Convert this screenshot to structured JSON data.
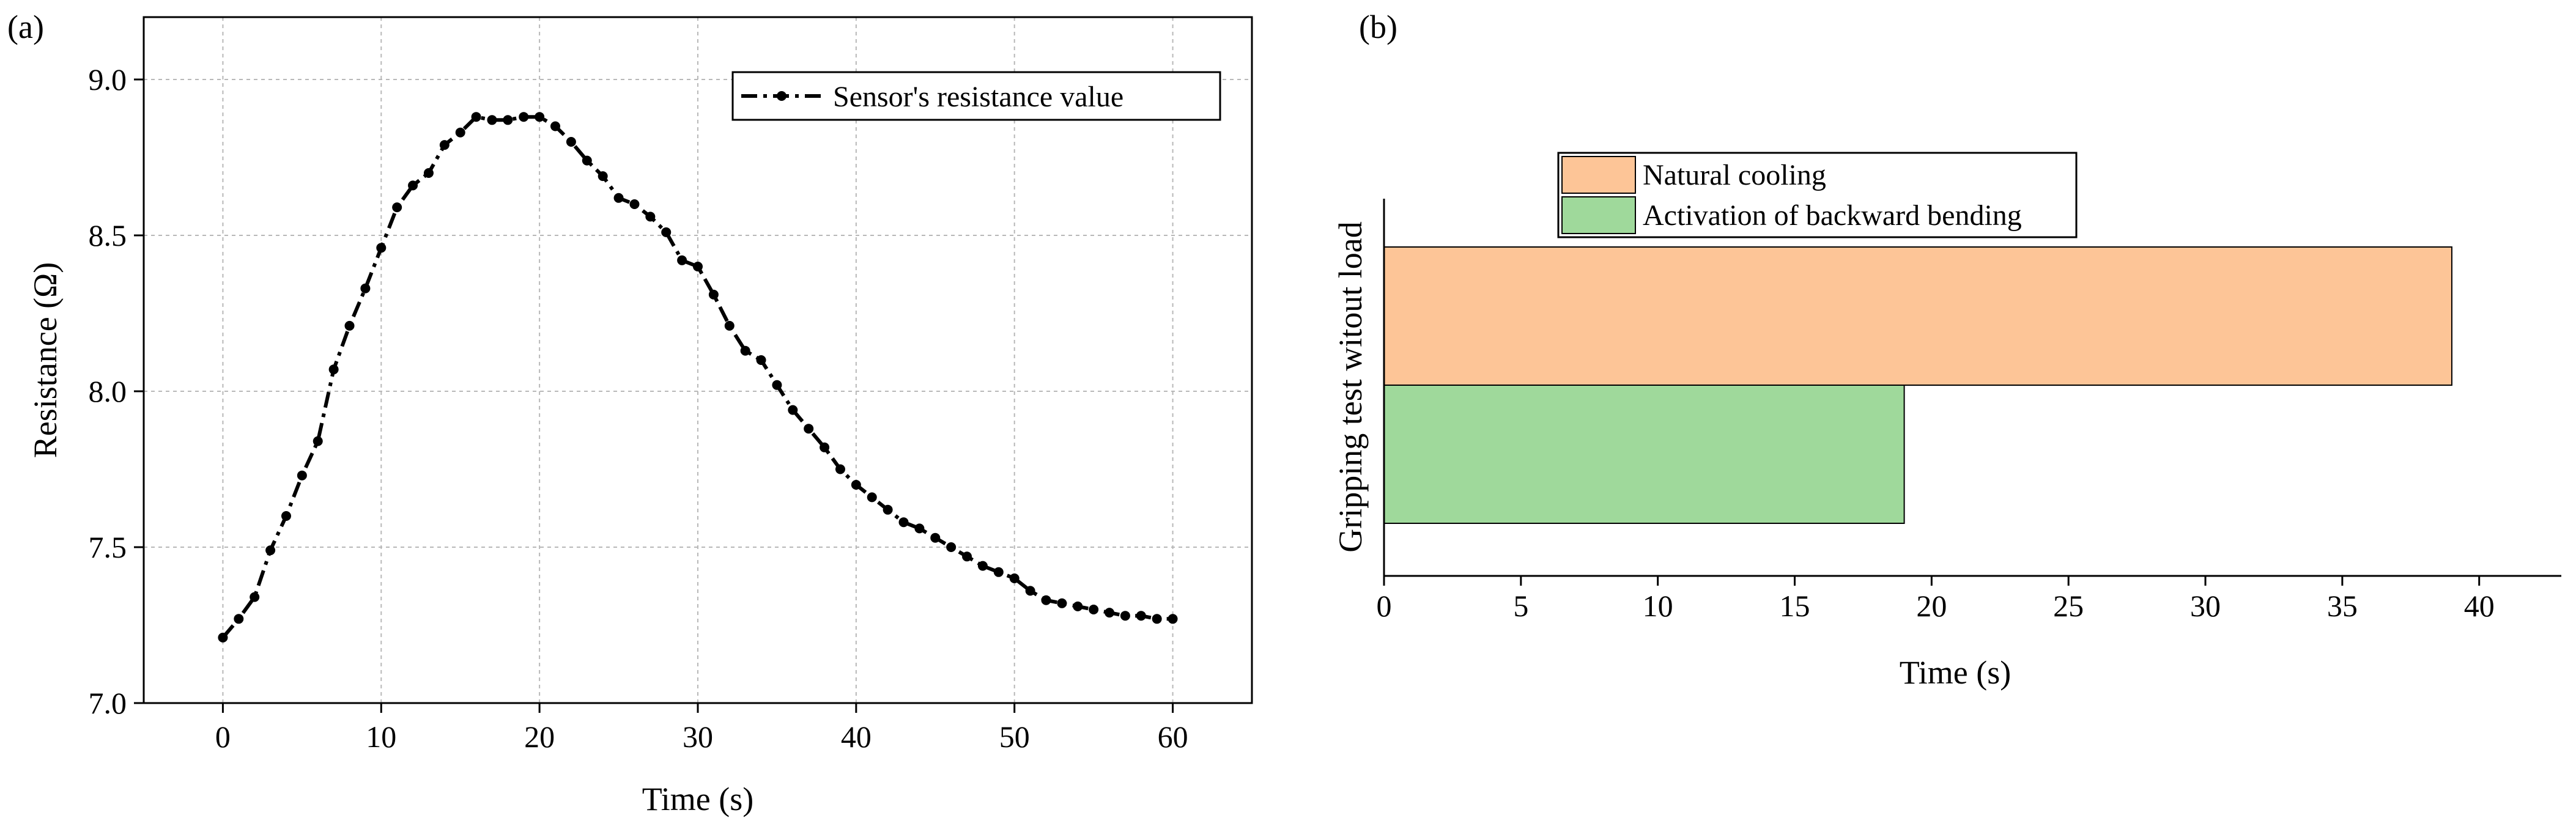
{
  "chart_data": [
    {
      "type": "line",
      "panel_label": "(a)",
      "title": "",
      "xlabel": "Time (s)",
      "ylabel": "Resistance (Ω)",
      "xlim": [
        -5,
        65
      ],
      "ylim": [
        7.0,
        9.2
      ],
      "x_ticks": [
        0,
        10,
        20,
        30,
        40,
        50,
        60
      ],
      "y_ticks": [
        7.0,
        7.5,
        8.0,
        8.5,
        9.0
      ],
      "y_tick_labels": [
        "7.0",
        "7.5",
        "8.0",
        "8.5",
        "9.0"
      ],
      "grid": true,
      "legend": {
        "position": "top-right",
        "entries": [
          "Sensor's resistance value"
        ]
      },
      "series": [
        {
          "name": "Sensor's resistance value",
          "line_style": "dash-dot",
          "marker": "circle",
          "color": "#000000",
          "x": [
            0,
            1,
            2,
            3,
            4,
            5,
            6,
            7,
            8,
            9,
            10,
            11,
            12,
            13,
            14,
            15,
            16,
            17,
            18,
            19,
            20,
            21,
            22,
            23,
            24,
            25,
            26,
            27,
            28,
            29,
            30,
            31,
            32,
            33,
            34,
            35,
            36,
            37,
            38,
            39,
            40,
            41,
            42,
            43,
            44,
            45,
            46,
            47,
            48,
            49,
            50,
            51,
            52,
            53,
            54,
            55,
            56,
            57,
            58,
            59,
            60
          ],
          "values": [
            7.21,
            7.27,
            7.34,
            7.49,
            7.6,
            7.73,
            7.84,
            8.07,
            8.21,
            8.33,
            8.46,
            8.59,
            8.66,
            8.7,
            8.79,
            8.83,
            8.88,
            8.87,
            8.87,
            8.88,
            8.88,
            8.85,
            8.8,
            8.74,
            8.69,
            8.62,
            8.6,
            8.56,
            8.51,
            8.42,
            8.4,
            8.31,
            8.21,
            8.13,
            8.1,
            8.02,
            7.94,
            7.88,
            7.82,
            7.75,
            7.7,
            7.66,
            7.62,
            7.58,
            7.56,
            7.53,
            7.5,
            7.47,
            7.44,
            7.42,
            7.4,
            7.36,
            7.33,
            7.32,
            7.31,
            7.3,
            7.29,
            7.28,
            7.28,
            7.27,
            7.27
          ]
        }
      ]
    },
    {
      "type": "bar",
      "orientation": "horizontal",
      "panel_label": "(b)",
      "title": "",
      "xlabel": "Time (s)",
      "ylabel": "Gripping test witout load",
      "xlim": [
        0,
        43
      ],
      "x_ticks": [
        0,
        5,
        10,
        15,
        20,
        25,
        30,
        35,
        40
      ],
      "grid": false,
      "legend": {
        "position": "top-left",
        "entries": [
          "Natural cooling",
          "Activation of backward bending"
        ]
      },
      "series": [
        {
          "name": "Natural cooling",
          "value": 39,
          "color": "#fdc597"
        },
        {
          "name": "Activation of backward bending",
          "value": 19,
          "color": "#9fd99b"
        }
      ]
    }
  ]
}
